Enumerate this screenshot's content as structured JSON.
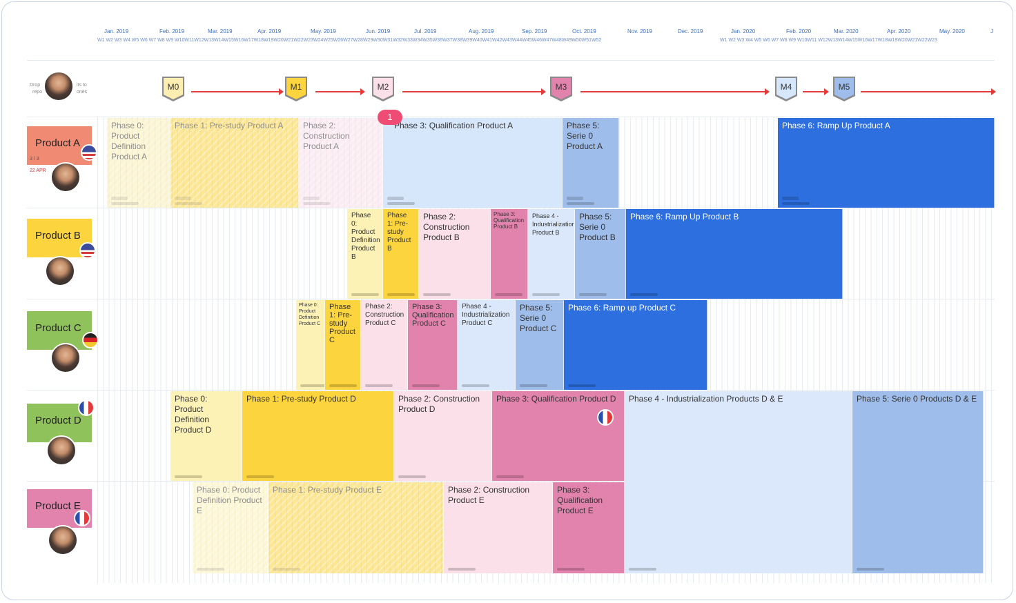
{
  "months": [
    "Jan. 2019",
    "Feb. 2019",
    "Mar. 2019",
    "Apr. 2019",
    "May. 2019",
    "Jun. 2019",
    "Jul. 2019",
    "Aug. 2019",
    "Sep. 2019",
    "Oct. 2019",
    "Nov. 2019",
    "Dec. 2019",
    "Jan. 2020",
    "Feb. 2020",
    "Mar. 2020",
    "Apr. 2020",
    "May. 2020",
    "J"
  ],
  "weeks_2019": "W1 W2 W3 W4 W5 W6 W7 W8 W9 W10W11W12W13W14W15W16W17W18W19W20W21W22W23W24W25W26W27W28W29W30W31W32W33W34W35W36W37W38W39W40W41W42W43W44W45W46W47W48W49W50W51W52",
  "weeks_2020": "W1 W2 W3 W4 W5 W6 W7 W8 W9 W10W11 W12W13W14W15W16W17W18W19W20W21W22W23",
  "milestones": [
    {
      "label": "M0",
      "color": "#fbeeb0"
    },
    {
      "label": "M1",
      "color": "#fcd43e"
    },
    {
      "label": "M2",
      "color": "#fbe0ea"
    },
    {
      "label": "M3",
      "color": "#e283ae"
    },
    {
      "label": "M4",
      "color": "#d6e6fb"
    },
    {
      "label": "M5",
      "color": "#9fbdea"
    }
  ],
  "badge": "1",
  "header_side": {
    "left_a": "Drop",
    "left_b": "repo",
    "right_a": "its to",
    "right_b": "ones"
  },
  "products": [
    {
      "name": "Product A",
      "flag": "us",
      "meta": "3 / 3",
      "meta2": "22 APR"
    },
    {
      "name": "Product B",
      "flag": "us"
    },
    {
      "name": "Product C",
      "flag": "de"
    },
    {
      "name": "Product D",
      "flag": "fr"
    },
    {
      "name": "Product E",
      "flag": "fr"
    }
  ],
  "cards": {
    "a0": "Phase 0: Product Definition Product A",
    "a1": "Phase 1: Pre-study Product A",
    "a2": "Phase 2: Construction Product A",
    "a3": "Phase 3: Qualification Product A",
    "a5": "Phase 5: Serie 0 Product A",
    "a6": "Phase 6: Ramp Up Product A",
    "b0": "Phase 0: Product Definition Product B",
    "b1": "Phase 1: Pre-study Product B",
    "b2": "Phase 2: Construction Product B",
    "b3": "Phase 3: Qualification Product B",
    "b4": "Phase 4 - Industrialization Product B",
    "b5": "Phase 5: Serie 0 Product B",
    "b6": "Phase 6: Ramp Up Product B",
    "c0": "Phase 0: Product Definition Product C",
    "c1": "Phase 1: Pre-study Product C",
    "c2": "Phase 2: Construction Product C",
    "c3": "Phase 3: Qualification Product C",
    "c4": "Phase 4 - Industrialization Product C",
    "c5": "Phase 5: Serie 0 Product C",
    "c6": "Phase 6: Ramp up Product C",
    "d0": "Phase 0: Product Definition Product D",
    "d1": "Phase 1: Pre-study Product D",
    "d2": "Phase 2: Construction Product D",
    "d3": "Phase 3: Qualification Product D",
    "de4": "Phase 4 - Industrialization Products D & E",
    "de5": "Phase 5:  Serie 0 Products D & E",
    "e0": "Phase 0: Product Definition Product E",
    "e1": "Phase 1: Pre-study Product E",
    "e2": "Phase 2: Construction Product E",
    "e3": "Phase 3: Qualification Product E"
  }
}
